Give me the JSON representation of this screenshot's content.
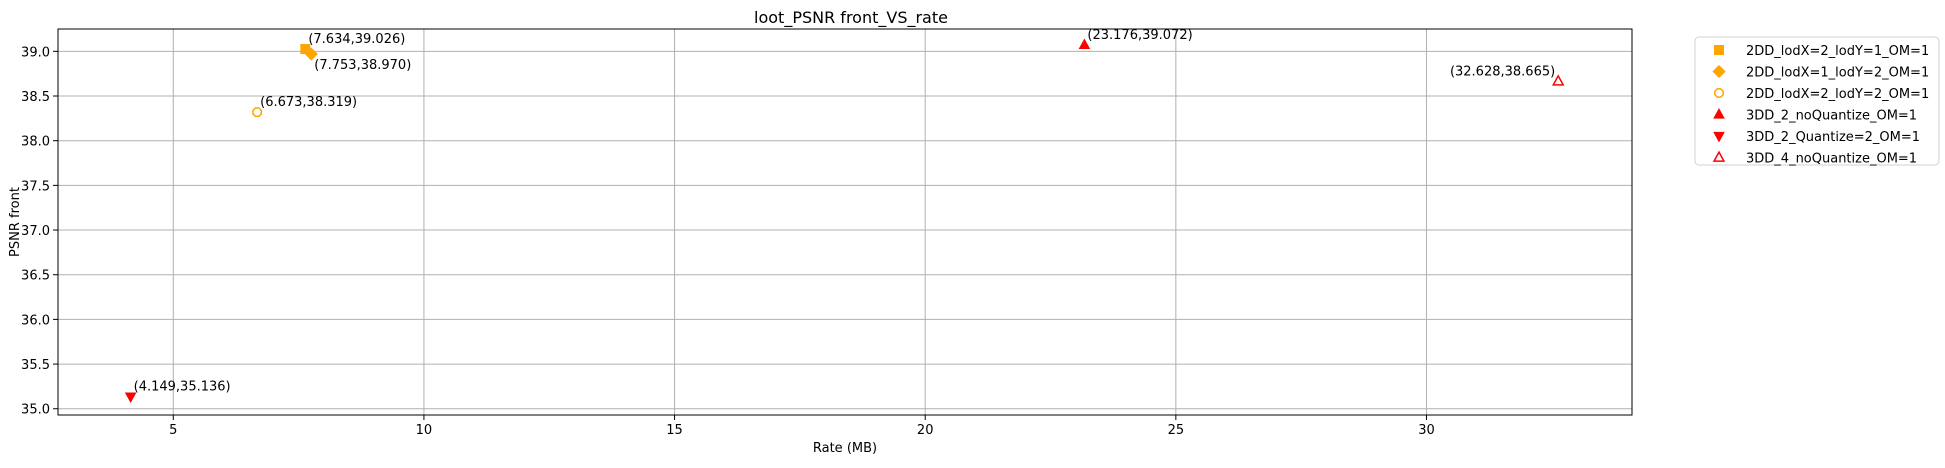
{
  "chart_data": {
    "type": "scatter",
    "title": "loot_PSNR front_VS_rate",
    "xlabel": "Rate (MB)",
    "ylabel": "PSNR front",
    "xlim": [
      2.7,
      34.1
    ],
    "ylim": [
      34.93,
      39.25
    ],
    "xticks": [
      5,
      10,
      15,
      20,
      25,
      30
    ],
    "yticks": [
      35.0,
      35.5,
      36.0,
      36.5,
      37.0,
      37.5,
      38.0,
      38.5,
      39.0
    ],
    "grid": true,
    "legend_position": "outside-right-top",
    "series": [
      {
        "name": "2DD_lodX=2_lodY=1_OM=1",
        "marker": "square",
        "color": "#ffa500",
        "filled": true,
        "points": [
          {
            "x": 7.634,
            "y": 39.026,
            "label": "(7.634,39.026)"
          }
        ]
      },
      {
        "name": "2DD_lodX=1_lodY=2_OM=1",
        "marker": "diamond",
        "color": "#ffa500",
        "filled": true,
        "points": [
          {
            "x": 7.753,
            "y": 38.97,
            "label": "(7.753,38.970)"
          }
        ]
      },
      {
        "name": "2DD_lodX=2_lodY=2_OM=1",
        "marker": "octagon",
        "color": "#ffa500",
        "filled": false,
        "points": [
          {
            "x": 6.673,
            "y": 38.319,
            "label": "(6.673,38.319)"
          }
        ]
      },
      {
        "name": "3DD_2_noQuantize_OM=1",
        "marker": "triangle-up",
        "color": "#ff0000",
        "filled": true,
        "points": [
          {
            "x": 23.176,
            "y": 39.072,
            "label": "(23.176,39.072)"
          }
        ]
      },
      {
        "name": "3DD_2_Quantize=2_OM=1",
        "marker": "triangle-down",
        "color": "#ff0000",
        "filled": true,
        "points": [
          {
            "x": 4.149,
            "y": 35.136,
            "label": "(4.149,35.136)"
          }
        ]
      },
      {
        "name": "3DD_4_noQuantize_OM=1",
        "marker": "triangle-up",
        "color": "#ff0000",
        "filled": false,
        "points": [
          {
            "x": 32.628,
            "y": 38.665,
            "label": "(32.628,38.665)"
          }
        ]
      }
    ]
  }
}
